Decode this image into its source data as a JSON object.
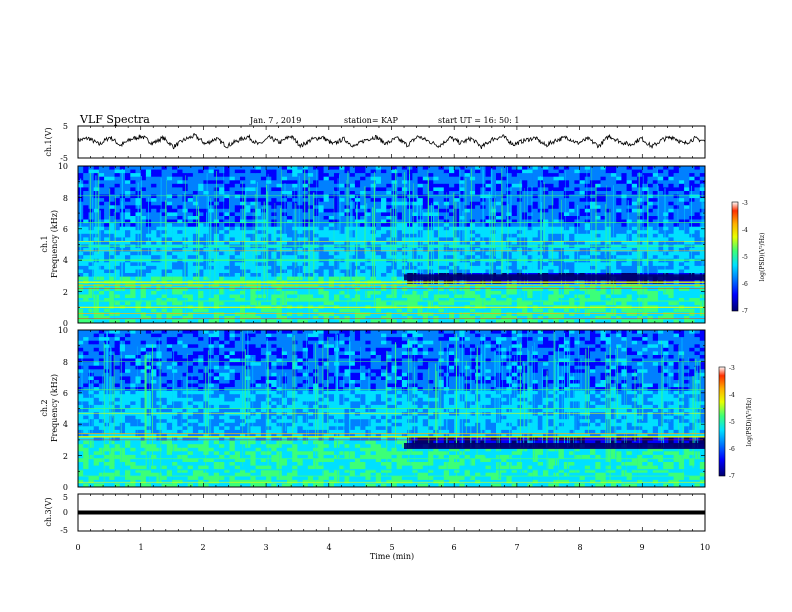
{
  "header": {
    "title": "VLF Spectra",
    "date": "Jan. 7 , 2019",
    "station": "station= KAP",
    "start": "start UT = 16: 50: 1"
  },
  "colors": {
    "trace": "#000000",
    "colormap": [
      "#00006e",
      "#0000ff",
      "#0080ff",
      "#00e0ff",
      "#3cff78",
      "#e8ff00",
      "#ffb000",
      "#ff3000",
      "#ffffff"
    ]
  },
  "chart_data": [
    {
      "type": "line",
      "ylabel": "ch.1(V)",
      "ylim": [
        -5,
        5
      ],
      "yticks": [
        "5",
        "-5"
      ],
      "xlim": [
        0,
        10
      ],
      "series": [
        {
          "values": [
            0.5,
            1.2,
            -0.8,
            1.6,
            -1.1,
            0.9,
            1.8,
            -0.4,
            1.3,
            -1.5,
            0.7,
            2.0,
            -0.6,
            1.1,
            -1.3,
            0.4,
            1.7,
            -0.9,
            1.4,
            -0.2,
            1.9,
            -1.2,
            0.8,
            1.5,
            -0.7,
            1.0,
            -1.4,
            0.6,
            1.6,
            -0.5,
            1.2,
            -1.0,
            1.8,
            0.2,
            -1.2,
            1.4,
            -0.3,
            1.1,
            -1.6,
            0.9,
            1.7,
            -0.8,
            0.5,
            1.3,
            -1.1,
            0.6,
            1.5,
            -0.4,
            1.0,
            -1.3,
            1.9,
            0.1,
            -0.9,
            1.2,
            -1.5,
            0.8,
            1.6,
            -0.6,
            1.1,
            0.3
          ]
        }
      ]
    },
    {
      "type": "heatmap",
      "ylabel": "ch.1 Frequency (kHz)",
      "ylim": [
        0,
        10
      ],
      "yticks": [
        "0",
        "2",
        "4",
        "6",
        "8",
        "10"
      ],
      "xlim": [
        0,
        10
      ],
      "colorbar": {
        "label": "log(PSD)(V²/Hz)",
        "range": [
          -7,
          -3
        ],
        "ticks": [
          "-3",
          "-4",
          "-5",
          "-6",
          "-7"
        ]
      }
    },
    {
      "type": "heatmap",
      "ylabel": "ch.2 Frequency (kHz)",
      "ylim": [
        0,
        10
      ],
      "yticks": [
        "0",
        "2",
        "4",
        "6",
        "8",
        "10"
      ],
      "xlim": [
        0,
        10
      ],
      "colorbar": {
        "label": "log(PSD)(V²/Hz)",
        "range": [
          -7,
          -3
        ],
        "ticks": [
          "-3",
          "-4",
          "-5",
          "-6",
          "-7"
        ]
      }
    },
    {
      "type": "line",
      "ylabel": "ch.3(V)",
      "ylim": [
        -5,
        5
      ],
      "yticks": [
        "5",
        "0",
        "-5"
      ],
      "xlim": [
        0,
        10
      ],
      "series": [
        {
          "values": [
            0.0,
            0.0
          ]
        }
      ]
    }
  ],
  "xaxis": {
    "label": "Time (min)",
    "ticks": [
      "0",
      "1",
      "2",
      "3",
      "4",
      "5",
      "6",
      "7",
      "8",
      "9",
      "10"
    ]
  }
}
